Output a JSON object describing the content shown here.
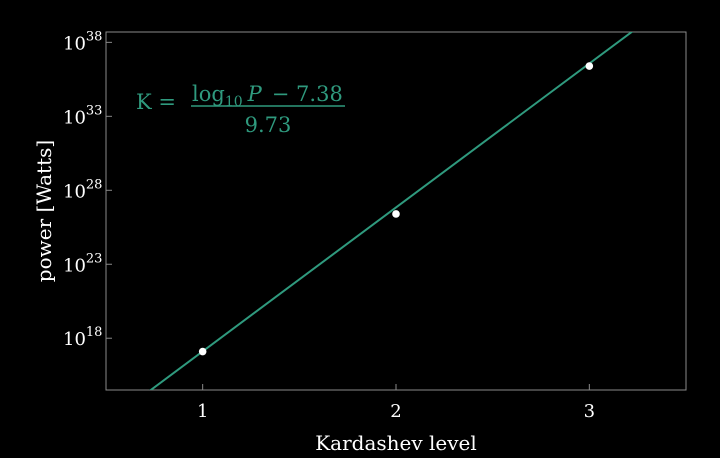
{
  "chart_data": {
    "type": "scatter",
    "title": "",
    "xlabel": "Kardashev level",
    "ylabel": "power [Watts]",
    "xlim": [
      0.5,
      3.5
    ],
    "ylim": [
      14.5,
      38.7
    ],
    "y_scale": "log",
    "x_ticks": [
      {
        "value": 1,
        "label": "1"
      },
      {
        "value": 2,
        "label": "2"
      },
      {
        "value": 3,
        "label": "3"
      }
    ],
    "y_ticks": [
      {
        "exp": 18,
        "base": "10",
        "sup": "18"
      },
      {
        "exp": 23,
        "base": "10",
        "sup": "23"
      },
      {
        "exp": 28,
        "base": "10",
        "sup": "28"
      },
      {
        "exp": 33,
        "base": "10",
        "sup": "33"
      },
      {
        "exp": 38,
        "base": "10",
        "sup": "38"
      }
    ],
    "points": [
      {
        "x": 1,
        "log10_y": 17.1
      },
      {
        "x": 2,
        "log10_y": 26.4
      },
      {
        "x": 3,
        "log10_y": 36.4
      }
    ],
    "fit_line": {
      "slope": 9.73,
      "intercept": 7.38,
      "color": "#2f9a7e"
    },
    "point_color": "#ffffff",
    "background": "#000000",
    "axes_color": "#8a8a8a",
    "annotation": {
      "lhs": "K =",
      "numerator_log": "log",
      "numerator_sub": "10",
      "numerator_var": "P",
      "numerator_rest": "− 7.38",
      "denominator": "9.73",
      "color": "#2f9a7e"
    }
  }
}
